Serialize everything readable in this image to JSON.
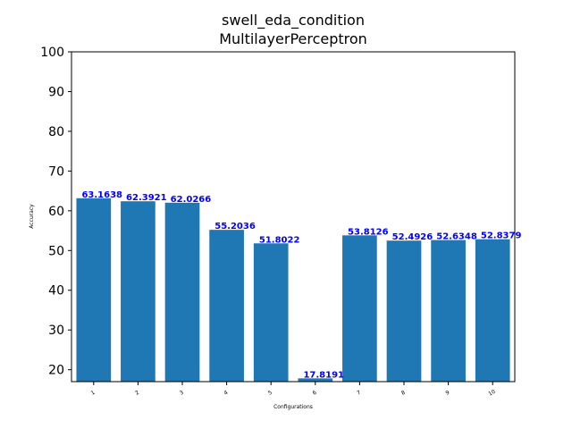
{
  "chart_data": {
    "type": "bar",
    "title": [
      "swell_eda_condition",
      "MultilayerPerceptron"
    ],
    "xlabel": "Configurations",
    "ylabel": "Accuracy",
    "categories": [
      "1",
      "2",
      "3",
      "4",
      "5",
      "6",
      "7",
      "8",
      "9",
      "10"
    ],
    "values": [
      63.1638,
      62.3921,
      62.0266,
      55.2036,
      51.8022,
      17.8191,
      53.8126,
      52.4926,
      52.6348,
      52.8379
    ],
    "value_labels": [
      "63.1638",
      "62.3921",
      "62.0266",
      "55.2036",
      "51.8022",
      "17.8191",
      "53.8126",
      "52.4926",
      "52.6348",
      "52.8379"
    ],
    "ylim": [
      17.0,
      100
    ],
    "yticks": [
      20,
      30,
      40,
      50,
      60,
      70,
      80,
      90,
      100
    ],
    "grid": false,
    "bar_color": "#1f77b4",
    "label_color": "#0000ff"
  }
}
